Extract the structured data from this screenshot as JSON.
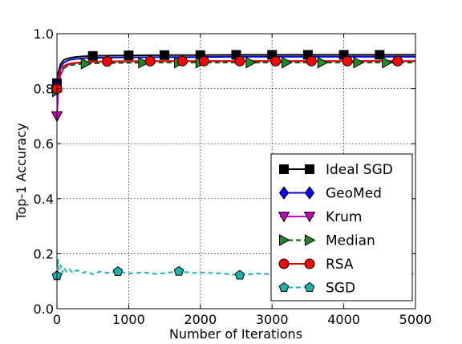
{
  "chart_data": {
    "type": "line",
    "xlabel": "Number of Iterations",
    "ylabel": "Top-1 Accuracy",
    "xlim": [
      0,
      5000
    ],
    "ylim": [
      0.0,
      1.0
    ],
    "xticks": [
      0,
      1000,
      2000,
      3000,
      4000,
      5000
    ],
    "xtick_labels": [
      "0",
      "1000",
      "2000",
      "3000",
      "4000",
      "5000"
    ],
    "yticks": [
      0.0,
      0.2,
      0.4,
      0.6,
      0.8,
      1.0
    ],
    "ytick_labels": [
      "0.0",
      "0.2",
      "0.4",
      "0.6",
      "0.8",
      "1.0"
    ],
    "grid": true,
    "legend_position": "lower-right",
    "series": [
      {
        "name": "Ideal SGD",
        "color": "#000000",
        "marker_fill": "#000000",
        "marker": "square",
        "dash": "solid",
        "x": [
          0,
          20,
          50,
          100,
          150,
          200,
          300,
          400,
          500,
          700,
          1000,
          1500,
          2000,
          2500,
          3000,
          3500,
          4000,
          4500,
          5000
        ],
        "y": [
          0.82,
          0.86,
          0.89,
          0.905,
          0.91,
          0.913,
          0.916,
          0.918,
          0.919,
          0.92,
          0.921,
          0.922,
          0.922,
          0.923,
          0.923,
          0.923,
          0.923,
          0.923,
          0.923
        ],
        "marker_x": [
          0,
          500,
          1000,
          1500,
          2000,
          2500,
          3000,
          3500,
          4000,
          4500
        ]
      },
      {
        "name": "GeoMed",
        "color": "#0000cc",
        "marker_fill": "#0000ff",
        "marker": "diamond",
        "dash": "solid",
        "x": [
          0,
          20,
          50,
          100,
          150,
          200,
          300,
          400,
          500,
          700,
          1000,
          1500,
          2000,
          2500,
          3000,
          3500,
          4000,
          4500,
          5000
        ],
        "y": [
          0.81,
          0.85,
          0.88,
          0.895,
          0.902,
          0.906,
          0.909,
          0.911,
          0.912,
          0.913,
          0.914,
          0.915,
          0.915,
          0.916,
          0.916,
          0.916,
          0.916,
          0.916,
          0.916
        ],
        "marker_x": [
          0
        ]
      },
      {
        "name": "Krum",
        "color": "#cc00cc",
        "marker_fill": "#bf00bf",
        "marker": "triangle-down",
        "dash": "solid",
        "x": [
          0,
          20,
          50,
          100,
          150,
          200,
          300,
          400,
          500,
          700,
          1000,
          1500,
          2000,
          2500,
          3000,
          3500,
          4000,
          4500,
          5000
        ],
        "y": [
          0.7,
          0.8,
          0.85,
          0.875,
          0.885,
          0.89,
          0.894,
          0.896,
          0.897,
          0.898,
          0.899,
          0.9,
          0.9,
          0.9,
          0.9,
          0.9,
          0.9,
          0.9,
          0.9
        ],
        "marker_x": [
          0
        ]
      },
      {
        "name": "Median",
        "color": "#006400",
        "marker_fill": "#228b22",
        "marker": "triangle-right",
        "dash": "dashed",
        "x": [
          0,
          20,
          50,
          100,
          150,
          200,
          300,
          400,
          500,
          700,
          1000,
          1500,
          2000,
          2500,
          3000,
          3500,
          4000,
          4500,
          5000
        ],
        "y": [
          0.79,
          0.83,
          0.86,
          0.875,
          0.882,
          0.886,
          0.889,
          0.891,
          0.892,
          0.893,
          0.894,
          0.895,
          0.895,
          0.895,
          0.895,
          0.895,
          0.895,
          0.895,
          0.895
        ],
        "marker_x": [
          0,
          400,
          1200,
          1700,
          2000,
          2700,
          3200,
          3700,
          4200,
          4600
        ]
      },
      {
        "name": "RSA",
        "color": "#dd0000",
        "marker_fill": "#ff0000",
        "marker": "circle",
        "dash": "solid",
        "x": [
          0,
          20,
          50,
          100,
          150,
          200,
          300,
          400,
          500,
          700,
          1000,
          1500,
          2000,
          2500,
          3000,
          3500,
          4000,
          4500,
          5000
        ],
        "y": [
          0.8,
          0.84,
          0.87,
          0.883,
          0.889,
          0.892,
          0.895,
          0.897,
          0.898,
          0.899,
          0.9,
          0.9,
          0.9,
          0.9,
          0.9,
          0.9,
          0.9,
          0.9,
          0.9
        ],
        "marker_x": [
          0,
          700,
          1300,
          1750,
          2050,
          2550,
          3050,
          3550,
          4050,
          4750
        ]
      },
      {
        "name": "SGD",
        "color": "#20b2aa",
        "marker_fill": "#20b2aa",
        "marker": "pentagon",
        "dash": "dashed",
        "x": [
          0,
          15,
          30,
          50,
          70,
          100,
          130,
          170,
          220,
          280,
          350,
          420,
          500,
          600,
          700,
          850,
          1000,
          1200,
          1400,
          1600,
          1700,
          1900,
          2100,
          2300,
          2550,
          2800,
          3000,
          3300,
          3600,
          3900,
          4200,
          4500,
          4800,
          5000
        ],
        "y": [
          0.12,
          0.18,
          0.14,
          0.16,
          0.13,
          0.15,
          0.135,
          0.145,
          0.13,
          0.14,
          0.13,
          0.135,
          0.125,
          0.135,
          0.13,
          0.135,
          0.128,
          0.132,
          0.126,
          0.133,
          0.136,
          0.13,
          0.131,
          0.128,
          0.122,
          0.128,
          0.125,
          0.127,
          0.124,
          0.126,
          0.125,
          0.127,
          0.126,
          0.127
        ],
        "marker_x": [
          0,
          850,
          1700,
          2550
        ]
      }
    ]
  }
}
